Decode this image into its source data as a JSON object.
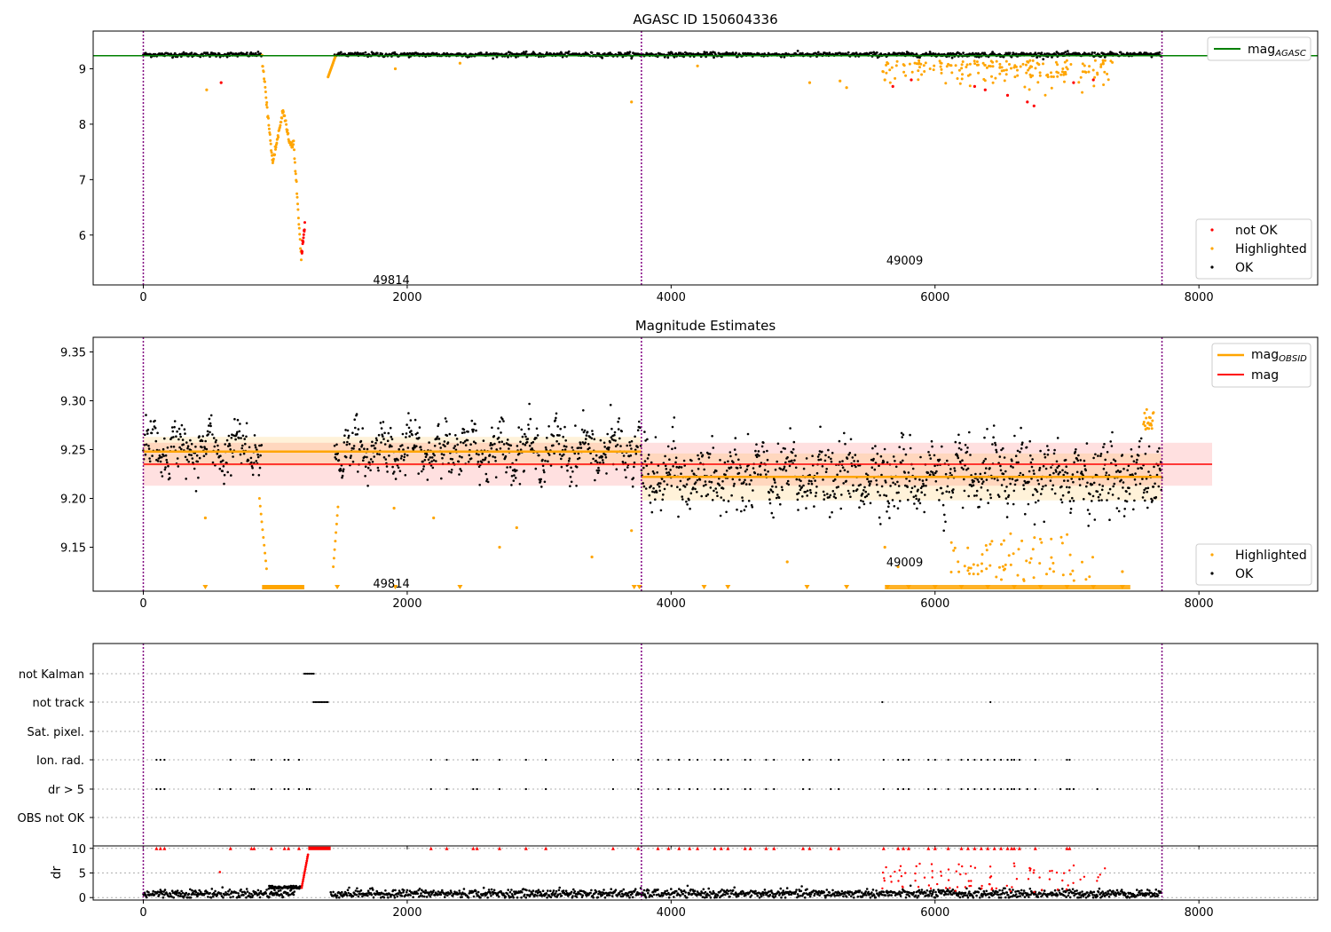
{
  "colors": {
    "ok": "#000000",
    "not_ok": "#ff0000",
    "highlighted": "#ffa500",
    "mag_agasc": "#008000",
    "mag": "#ff0000",
    "mag_obsid": "#ffa500",
    "obs_boundary": "#800080",
    "grid": "#b0b0b0"
  },
  "chart_data": [
    {
      "type": "scatter",
      "title": "AGASC ID 150604336",
      "xlim": [
        -380,
        8900
      ],
      "ylim": [
        5.1,
        9.68
      ],
      "xticks": [
        0,
        2000,
        4000,
        6000,
        8000
      ],
      "yticks": [
        6,
        7,
        8,
        9
      ],
      "obs_boundaries": [
        0,
        3775,
        7720
      ],
      "obs_labels": [
        {
          "text": "49814",
          "x": 1880,
          "y": 5.2
        },
        {
          "text": "49009",
          "x": 5770,
          "y": 5.55
        }
      ],
      "mag_agasc": 9.235,
      "legend_lines": [
        {
          "name": "mag",
          "sub": "AGASC",
          "color_key": "mag_agasc"
        }
      ],
      "legend_points": [
        {
          "name": "not OK",
          "color_key": "not_ok"
        },
        {
          "name": "Highlighted",
          "color_key": "highlighted"
        },
        {
          "name": "OK",
          "color_key": "ok"
        }
      ]
    },
    {
      "type": "scatter",
      "title": "Magnitude Estimates",
      "xlim": [
        -380,
        8900
      ],
      "ylim": [
        9.105,
        9.365
      ],
      "xticks": [
        0,
        2000,
        4000,
        6000,
        8000
      ],
      "yticks": [
        9.15,
        9.2,
        9.25,
        9.3,
        9.35
      ],
      "obs_boundaries": [
        0,
        3775,
        7720
      ],
      "obs_labels": [
        {
          "text": "49814",
          "x": 1880,
          "y": 9.113
        },
        {
          "text": "49009",
          "x": 5770,
          "y": 9.135
        }
      ],
      "mag": 9.235,
      "mag_band": [
        9.213,
        9.257
      ],
      "mag_obsid_segments": [
        {
          "x0": 0,
          "x1": 3775,
          "mag": 9.248,
          "band": [
            9.233,
            9.263
          ]
        },
        {
          "x0": 3775,
          "x1": 7720,
          "mag": 9.222,
          "band": [
            9.198,
            9.246
          ]
        }
      ],
      "legend_lines": [
        {
          "name": "mag",
          "sub": "OBSID",
          "color_key": "mag_obsid"
        },
        {
          "name": "mag",
          "sub": "",
          "color_key": "mag"
        }
      ],
      "legend_points": [
        {
          "name": "Highlighted",
          "color_key": "highlighted"
        },
        {
          "name": "OK",
          "color_key": "ok"
        }
      ]
    },
    {
      "type": "scatter",
      "title": "",
      "xlim": [
        -380,
        8900
      ],
      "xticks": [
        0,
        2000,
        4000,
        6000,
        8000
      ],
      "obs_boundaries": [
        0,
        3775,
        7720
      ],
      "flag_rows": [
        "not Kalman",
        "not track",
        "Sat. pixel.",
        "Ion. rad.",
        "dr > 5",
        "OBS not OK"
      ],
      "dr_ylabel": "dr",
      "dr_ylim": [
        -0.5,
        10.5
      ],
      "dr_yticks": [
        0,
        5,
        10
      ],
      "dr_threshold": 5
    }
  ]
}
